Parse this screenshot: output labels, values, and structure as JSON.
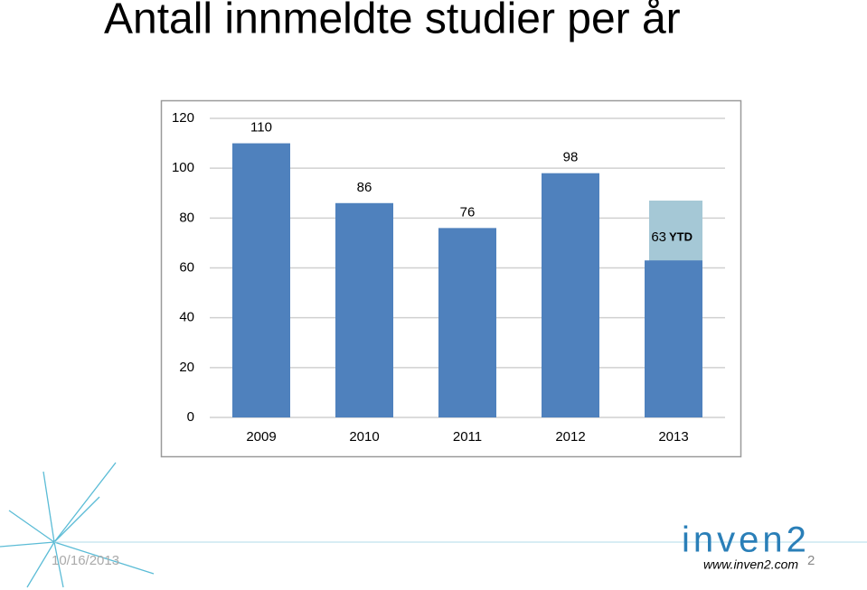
{
  "header": {
    "title": "Antall innmeldte studier per år"
  },
  "chart_data": {
    "type": "bar",
    "categories": [
      "2009",
      "2010",
      "2011",
      "2012",
      "2013"
    ],
    "values": [
      110,
      86,
      76,
      98,
      63
    ],
    "color": "#4f81bd",
    "projected": {
      "values": [
        null,
        null,
        null,
        null,
        87
      ],
      "color": "#a5c8d6"
    },
    "annotation": "YTD",
    "ylim": [
      0,
      120
    ],
    "yticks": [
      0,
      20,
      40,
      60,
      80,
      100,
      120
    ],
    "grid": true
  },
  "footer": {
    "date": "10/16/2013",
    "logo": "inven2",
    "url": "www.inven2.com",
    "page": "2"
  }
}
